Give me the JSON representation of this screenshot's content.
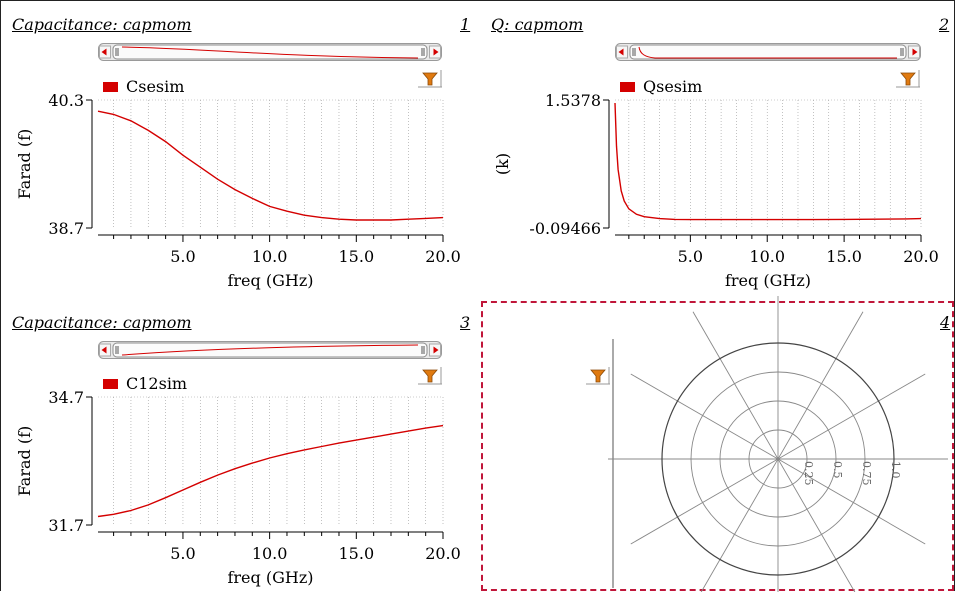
{
  "colors": {
    "series": "#d40000",
    "axis": "#000000",
    "grid": "#9a9a9a",
    "selection": "#c0163a",
    "filter": "#e07a10"
  },
  "panels": [
    {
      "title": "Capacitance: capmom",
      "number": "1",
      "legend": "Csesim",
      "ylabel": "Farad (f)",
      "xlabel": "freq (GHz)",
      "ytick_top": "40.3",
      "ytick_bottom": "38.7",
      "xticks": [
        "5.0",
        "10.0",
        "15.0",
        "20.0"
      ]
    },
    {
      "title": "Q: capmom",
      "number": "2",
      "legend": "Qsesim",
      "ylabel": "(k)",
      "xlabel": "freq (GHz)",
      "ytick_top": "1.5378",
      "ytick_bottom": "-0.09466",
      "xticks": [
        "5.0",
        "10.0",
        "15.0",
        "20.0"
      ]
    },
    {
      "title": "Capacitance: capmom",
      "number": "3",
      "legend": "C12sim",
      "ylabel": "Farad (f)",
      "xlabel": "freq (GHz)",
      "ytick_top": "34.7",
      "ytick_bottom": "31.7",
      "xticks": [
        "5.0",
        "10.0",
        "15.0",
        "20.0"
      ]
    },
    {
      "number": "4",
      "radial_labels": [
        "0.25",
        "0.5",
        "0.75",
        "1.0"
      ]
    }
  ],
  "chart_data": [
    {
      "type": "line",
      "title": "Capacitance: capmom",
      "xlabel": "freq (GHz)",
      "ylabel": "Farad (f)",
      "xlim": [
        0.1,
        20.0
      ],
      "ylim": [
        38.7,
        40.3
      ],
      "grid": true,
      "legend": "top-left",
      "series": [
        {
          "name": "Csesim",
          "x": [
            0.1,
            1,
            2,
            3,
            4,
            5,
            6,
            7,
            8,
            9,
            10,
            11,
            12,
            13,
            14,
            15,
            16,
            17,
            18,
            19,
            20
          ],
          "y": [
            40.16,
            40.12,
            40.04,
            39.92,
            39.78,
            39.61,
            39.46,
            39.31,
            39.18,
            39.07,
            38.97,
            38.91,
            38.86,
            38.83,
            38.81,
            38.8,
            38.8,
            38.8,
            38.81,
            38.82,
            38.83
          ]
        }
      ]
    },
    {
      "type": "line",
      "title": "Q: capmom",
      "xlabel": "freq (GHz)",
      "ylabel": "(k)",
      "xlim": [
        0.1,
        20.0
      ],
      "ylim": [
        -0.09466,
        1.5378
      ],
      "grid": true,
      "legend": "top-left",
      "series": [
        {
          "name": "Qsesim",
          "x": [
            0.1,
            0.2,
            0.3,
            0.5,
            0.7,
            1.0,
            1.5,
            2,
            3,
            4,
            5,
            7,
            10,
            13,
            15,
            17,
            19,
            20
          ],
          "y": [
            1.5,
            0.95,
            0.65,
            0.38,
            0.25,
            0.15,
            0.08,
            0.05,
            0.025,
            0.015,
            0.012,
            0.012,
            0.012,
            0.013,
            0.015,
            0.018,
            0.022,
            0.025
          ]
        }
      ]
    },
    {
      "type": "line",
      "title": "Capacitance: capmom",
      "xlabel": "freq (GHz)",
      "ylabel": "Farad (f)",
      "xlim": [
        0.1,
        20.0
      ],
      "ylim": [
        31.7,
        34.7
      ],
      "grid": true,
      "legend": "top-left",
      "series": [
        {
          "name": "C12sim",
          "x": [
            0.1,
            1,
            2,
            3,
            4,
            5,
            6,
            7,
            8,
            9,
            10,
            11,
            12,
            13,
            14,
            15,
            16,
            17,
            18,
            19,
            20
          ],
          "y": [
            31.9,
            31.95,
            32.04,
            32.17,
            32.34,
            32.52,
            32.7,
            32.87,
            33.02,
            33.15,
            33.27,
            33.37,
            33.46,
            33.54,
            33.62,
            33.69,
            33.76,
            33.83,
            33.9,
            33.97,
            34.03
          ]
        }
      ]
    },
    {
      "type": "polar",
      "radial_ticks": [
        0.25,
        0.5,
        0.75,
        1.0
      ],
      "series": []
    }
  ]
}
